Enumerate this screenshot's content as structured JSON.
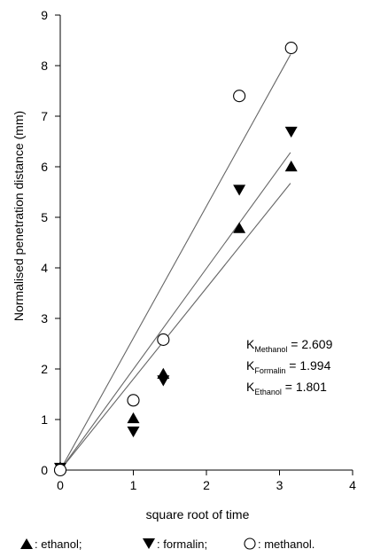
{
  "chart_data": {
    "type": "scatter",
    "xlabel": "square root of time",
    "ylabel": "Normalised penetration  distance  (mm)",
    "xlim": [
      0,
      4
    ],
    "ylim": [
      0,
      9
    ],
    "xticks": [
      "0",
      "1",
      "2",
      "3",
      "4"
    ],
    "yticks": [
      "0",
      "1",
      "2",
      "3",
      "4",
      "5",
      "6",
      "7",
      "8",
      "9"
    ],
    "grid": false,
    "legend_position": "bottom",
    "series": [
      {
        "name": "ethanol;",
        "legend_label": ": ethanol;",
        "marker": "triangle-up",
        "x": [
          0,
          1,
          1.41,
          2.45,
          3.16
        ],
        "y": [
          0.05,
          1.02,
          1.9,
          4.78,
          6.0
        ],
        "slope": 1.801
      },
      {
        "name": "formalin;",
        "legend_label": ": formalin;",
        "marker": "triangle-down",
        "x": [
          0,
          1,
          1.41,
          2.45,
          3.16
        ],
        "y": [
          0.05,
          0.77,
          1.78,
          5.55,
          6.7
        ],
        "slope": 1.994
      },
      {
        "name": "methanol.",
        "legend_label": ": methanol.",
        "marker": "circle-open",
        "x": [
          0,
          1,
          1.41,
          2.45,
          3.16
        ],
        "y": [
          0.0,
          1.38,
          2.58,
          7.4,
          8.35
        ],
        "slope": 2.609
      }
    ],
    "annotations": [
      {
        "label": "K",
        "sub": "Methanol",
        "value": "= 2.609"
      },
      {
        "label": "K",
        "sub": "Formalin",
        "value": "= 1.994"
      },
      {
        "label": "K",
        "sub": "Ethanol",
        "value": "= 1.801"
      }
    ]
  }
}
